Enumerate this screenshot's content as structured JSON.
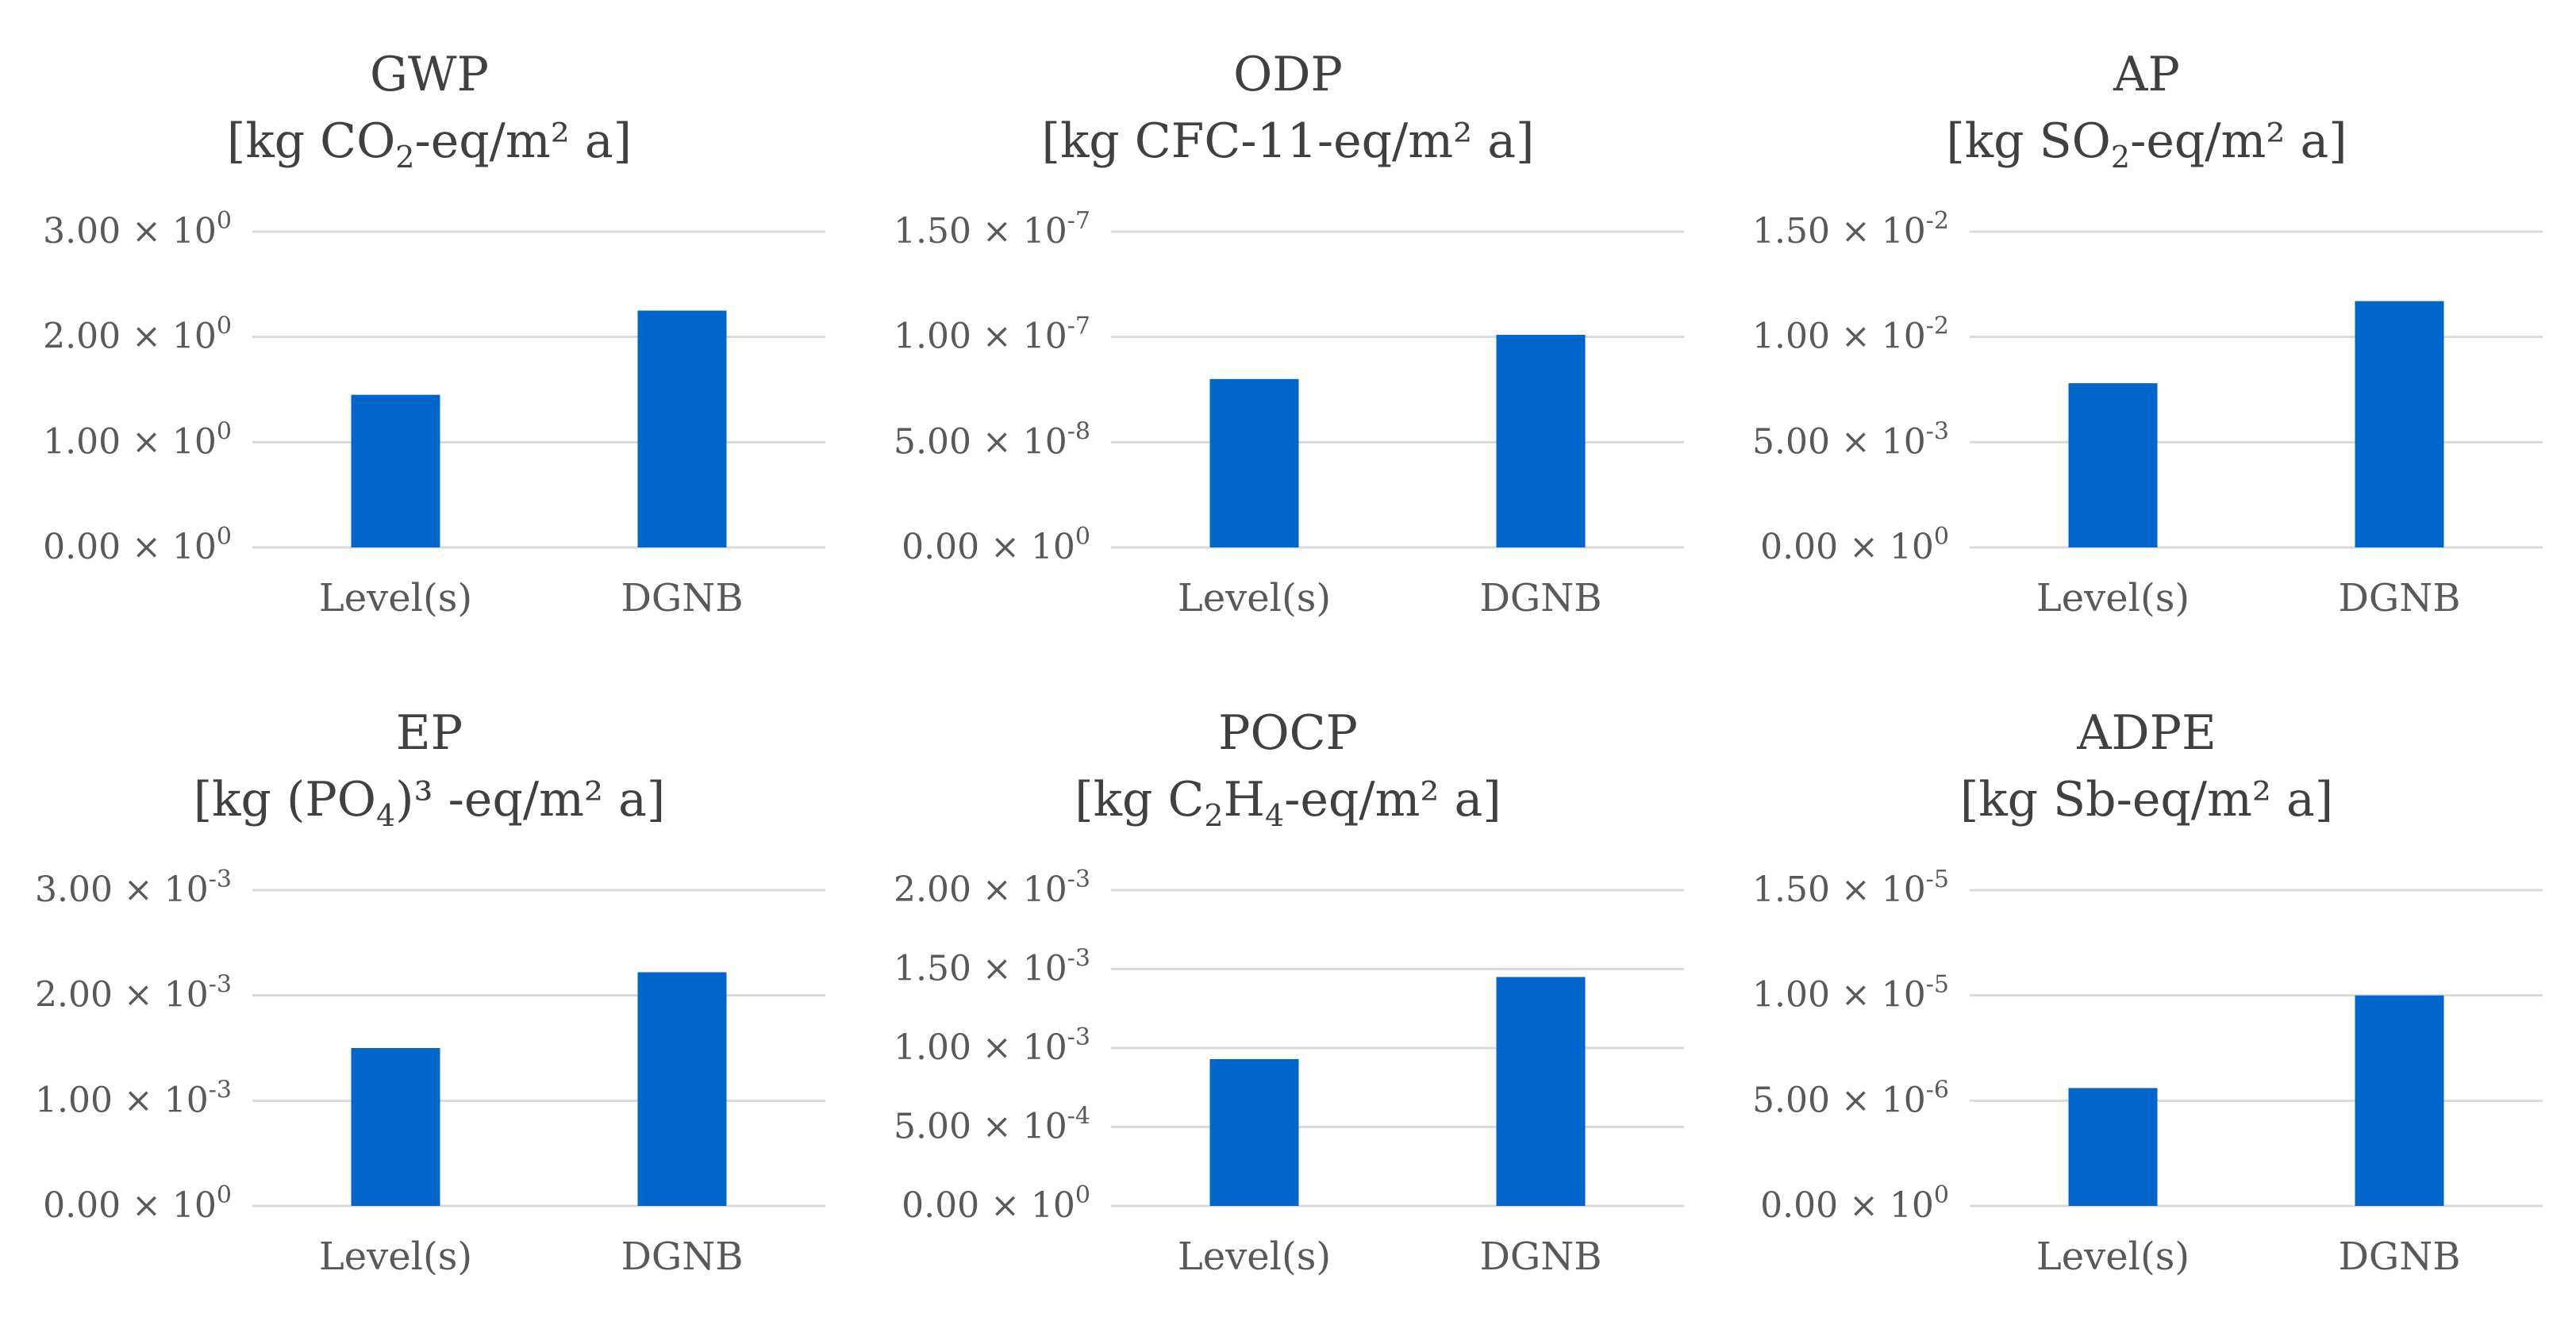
{
  "chart_data": [
    {
      "type": "bar",
      "id": "gwp",
      "title": "GWP",
      "unit": {
        "prefix": "[kg CO",
        "sub": "2",
        "suffix": "-eq/m² a]"
      },
      "categories": [
        "Level(s)",
        "DGNB"
      ],
      "values": [
        1.45,
        2.25
      ],
      "ylim": [
        0,
        3
      ],
      "yticks": [
        {
          "value": 0,
          "mantissa": "0.00",
          "exp": "0"
        },
        {
          "value": 1,
          "mantissa": "1.00",
          "exp": "0"
        },
        {
          "value": 2,
          "mantissa": "2.00",
          "exp": "0"
        },
        {
          "value": 3,
          "mantissa": "3.00",
          "exp": "0"
        }
      ],
      "color": "#0066cc"
    },
    {
      "type": "bar",
      "id": "odp",
      "title": "ODP",
      "unit": {
        "prefix": "[kg CFC-11-eq/m² a]",
        "sub": "",
        "suffix": ""
      },
      "categories": [
        "Level(s)",
        "DGNB"
      ],
      "values": [
        8e-08,
        1.01e-07
      ],
      "ylim": [
        0,
        1.5e-07
      ],
      "yticks": [
        {
          "value": 0,
          "mantissa": "0.00",
          "exp": "0"
        },
        {
          "value": 5e-08,
          "mantissa": "5.00",
          "exp": "-8"
        },
        {
          "value": 1e-07,
          "mantissa": "1.00",
          "exp": "-7"
        },
        {
          "value": 1.5e-07,
          "mantissa": "1.50",
          "exp": "-7"
        }
      ],
      "color": "#0066cc"
    },
    {
      "type": "bar",
      "id": "ap",
      "title": "AP",
      "unit": {
        "prefix": "[kg SO",
        "sub": "2",
        "suffix": "-eq/m² a]"
      },
      "categories": [
        "Level(s)",
        "DGNB"
      ],
      "values": [
        0.0078,
        0.0117
      ],
      "ylim": [
        0,
        0.015
      ],
      "yticks": [
        {
          "value": 0,
          "mantissa": "0.00",
          "exp": "0"
        },
        {
          "value": 0.005,
          "mantissa": "5.00",
          "exp": "-3"
        },
        {
          "value": 0.01,
          "mantissa": "1.00",
          "exp": "-2"
        },
        {
          "value": 0.015,
          "mantissa": "1.50",
          "exp": "-2"
        }
      ],
      "color": "#0066cc"
    },
    {
      "type": "bar",
      "id": "ep",
      "title": "EP",
      "unit": {
        "prefix": "[kg (PO",
        "sub": "4",
        "suffix": ")³ -eq/m² a]"
      },
      "categories": [
        "Level(s)",
        "DGNB"
      ],
      "values": [
        0.0015,
        0.00222
      ],
      "ylim": [
        0,
        0.003
      ],
      "yticks": [
        {
          "value": 0,
          "mantissa": "0.00",
          "exp": "0"
        },
        {
          "value": 0.001,
          "mantissa": "1.00",
          "exp": "-3"
        },
        {
          "value": 0.002,
          "mantissa": "2.00",
          "exp": "-3"
        },
        {
          "value": 0.003,
          "mantissa": "3.00",
          "exp": "-3"
        }
      ],
      "color": "#0066cc"
    },
    {
      "type": "bar",
      "id": "pocp",
      "title": "POCP",
      "unit": {
        "prefix": "[kg C",
        "sub": "2",
        "mid": "H",
        "sub2": "4",
        "suffix": "-eq/m² a]"
      },
      "categories": [
        "Level(s)",
        "DGNB"
      ],
      "values": [
        0.00093,
        0.00145
      ],
      "ylim": [
        0,
        0.002
      ],
      "yticks": [
        {
          "value": 0,
          "mantissa": "0.00",
          "exp": "0"
        },
        {
          "value": 0.0005,
          "mantissa": "5.00",
          "exp": "-4"
        },
        {
          "value": 0.001,
          "mantissa": "1.00",
          "exp": "-3"
        },
        {
          "value": 0.0015,
          "mantissa": "1.50",
          "exp": "-3"
        },
        {
          "value": 0.002,
          "mantissa": "2.00",
          "exp": "-3"
        }
      ],
      "color": "#0066cc"
    },
    {
      "type": "bar",
      "id": "adpe",
      "title": "ADPE",
      "unit": {
        "prefix": "[kg Sb-eq/m² a]",
        "sub": "",
        "suffix": ""
      },
      "categories": [
        "Level(s)",
        "DGNB"
      ],
      "values": [
        5.6e-06,
        1e-05
      ],
      "ylim": [
        0,
        1.5e-05
      ],
      "yticks": [
        {
          "value": 0,
          "mantissa": "0.00",
          "exp": "0"
        },
        {
          "value": 5e-06,
          "mantissa": "5.00",
          "exp": "-6"
        },
        {
          "value": 1e-05,
          "mantissa": "1.00",
          "exp": "-5"
        },
        {
          "value": 1.5e-05,
          "mantissa": "1.50",
          "exp": "-5"
        }
      ],
      "color": "#0066cc"
    }
  ]
}
